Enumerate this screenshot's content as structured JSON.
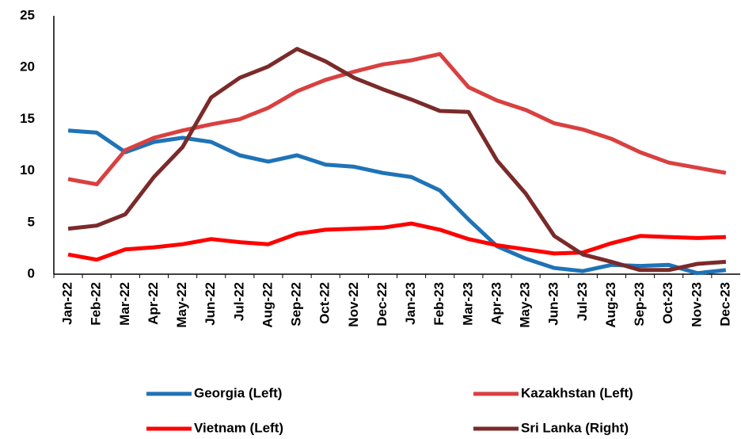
{
  "chart_data": {
    "type": "line",
    "categories": [
      "Jan-22",
      "Feb-22",
      "Mar-22",
      "Apr-22",
      "May-22",
      "Jun-22",
      "Jul-22",
      "Aug-22",
      "Sep-22",
      "Oct-22",
      "Nov-22",
      "Dec-22",
      "Jan-23",
      "Feb-23",
      "Mar-23",
      "Apr-23",
      "May-23",
      "Jun-23",
      "Jul-23",
      "Aug-23",
      "Sep-23",
      "Oct-23",
      "Nov-23",
      "Dec-23"
    ],
    "series": [
      {
        "name": "Georgia (Left)",
        "color": "#1f73b7",
        "values": [
          13.9,
          13.7,
          11.8,
          12.8,
          13.2,
          12.8,
          11.5,
          10.9,
          11.5,
          10.6,
          10.4,
          9.8,
          9.4,
          8.1,
          5.3,
          2.7,
          1.5,
          0.6,
          0.3,
          0.9,
          0.8,
          0.9,
          0.1,
          0.4
        ]
      },
      {
        "name": "Kazakhstan (Left)",
        "color": "#d94040",
        "values": [
          9.2,
          8.7,
          12.0,
          13.2,
          13.9,
          14.5,
          15.0,
          16.1,
          17.7,
          18.8,
          19.6,
          20.3,
          20.7,
          21.3,
          18.1,
          16.8,
          15.9,
          14.6,
          14.0,
          13.1,
          11.8,
          10.8,
          10.3,
          9.8
        ]
      },
      {
        "name": "Vietnam (Left)",
        "color": "#ff0000",
        "values": [
          1.9,
          1.4,
          2.4,
          2.6,
          2.9,
          3.4,
          3.1,
          2.9,
          3.9,
          4.3,
          4.4,
          4.5,
          4.9,
          4.3,
          3.4,
          2.8,
          2.4,
          2.0,
          2.1,
          3.0,
          3.7,
          3.6,
          3.5,
          3.6
        ]
      },
      {
        "name": "Sri Lanka (Right)",
        "color": "#7b2a2a",
        "values": [
          4.4,
          4.7,
          5.8,
          9.4,
          12.3,
          17.1,
          19.0,
          20.1,
          21.8,
          20.6,
          19.0,
          17.9,
          16.9,
          15.8,
          15.7,
          11.0,
          7.8,
          3.7,
          1.9,
          1.2,
          0.4,
          0.4,
          1.0,
          1.2
        ]
      }
    ],
    "ylim": [
      0,
      25
    ],
    "yticks": [
      0,
      5,
      10,
      15,
      20,
      25
    ],
    "legend": "bottom"
  }
}
